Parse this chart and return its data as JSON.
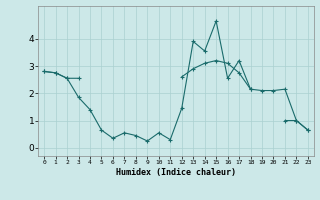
{
  "title": "",
  "xlabel": "Humidex (Indice chaleur)",
  "bg_color": "#cce8e8",
  "line_color": "#1a6b6b",
  "x_ticks": [
    0,
    1,
    2,
    3,
    4,
    5,
    6,
    7,
    8,
    9,
    10,
    11,
    12,
    13,
    14,
    15,
    16,
    17,
    18,
    19,
    20,
    21,
    22,
    23
  ],
  "line1_y": [
    2.8,
    2.75,
    2.55,
    2.55,
    null,
    null,
    null,
    null,
    null,
    null,
    null,
    null,
    2.6,
    2.9,
    3.1,
    3.2,
    3.1,
    2.75,
    2.15,
    2.1,
    2.1,
    2.15,
    1.0,
    0.65
  ],
  "line2_y": [
    2.8,
    2.75,
    2.55,
    1.85,
    1.4,
    0.65,
    0.35,
    0.55,
    0.45,
    0.25,
    0.55,
    0.3,
    1.45,
    3.9,
    3.55,
    4.65,
    2.55,
    3.2,
    2.15,
    null,
    null,
    1.0,
    1.0,
    0.65
  ],
  "ylim": [
    -0.3,
    5.2
  ],
  "yticks": [
    0,
    1,
    2,
    3,
    4
  ],
  "xlim": [
    -0.5,
    23.5
  ]
}
